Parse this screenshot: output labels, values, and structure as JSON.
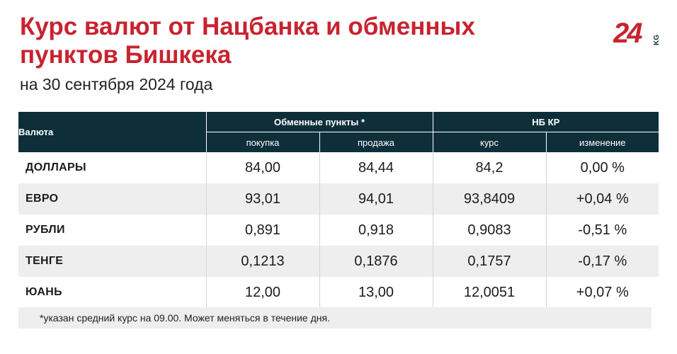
{
  "header": {
    "title": "Курс валют от Нацбанка и обменных пунктов Бишкека",
    "subtitle": "на 30 сентября 2024 года",
    "logo_text": "24",
    "logo_suffix": "KG",
    "brand_color": "#c8232f"
  },
  "table": {
    "currency_header": "Валюта",
    "group_exchange": "Обменные пункты *",
    "group_nbkr": "НБ КР",
    "col_buy": "покупка",
    "col_sell": "продажа",
    "col_rate": "курс",
    "col_change": "изменение",
    "header_color": "#0e2f3a",
    "rows": [
      {
        "name": "ДОЛЛАРЫ",
        "buy": "84,00",
        "sell": "84,44",
        "rate": "84,2",
        "change": "0,00 %"
      },
      {
        "name": "ЕВРО",
        "buy": "93,01",
        "sell": "94,01",
        "rate": "93,8409",
        "change": "+0,04 %"
      },
      {
        "name": "РУБЛИ",
        "buy": "0,891",
        "sell": "0,918",
        "rate": "0,9083",
        "change": "-0,51 %"
      },
      {
        "name": "ТЕНГЕ",
        "buy": "0,1213",
        "sell": "0,1876",
        "rate": "0,1757",
        "change": "-0,17 %"
      },
      {
        "name": "ЮАНЬ",
        "buy": "12,00",
        "sell": "13,00",
        "rate": "12,0051",
        "change": "+0,07 %"
      }
    ]
  },
  "footnote": "*указан средний курс на 09.00. Может меняться в течение дня."
}
